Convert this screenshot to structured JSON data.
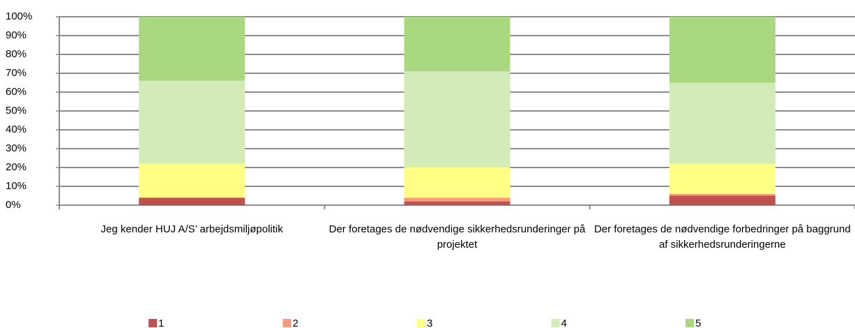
{
  "chart_data": {
    "type": "stacked_bar",
    "categories": [
      "Jeg kender HUJ A/S’ arbejdsmiljøpolitik",
      "Der foretages de nødvendige sikkerhedsrunderinger på projektet",
      "Der foretages de nødvendige forbedringer på baggrund af sikkerhedsrunderingerne"
    ],
    "series": [
      {
        "name": "1",
        "color": "#c0504d",
        "values": [
          4,
          2,
          5
        ]
      },
      {
        "name": "2",
        "color": "#f79b7f",
        "values": [
          0,
          2,
          1
        ]
      },
      {
        "name": "3",
        "color": "#ffff85",
        "values": [
          18,
          16,
          16
        ]
      },
      {
        "name": "4",
        "color": "#d3ebb7",
        "values": [
          44,
          51,
          43
        ]
      },
      {
        "name": "5",
        "color": "#a9d881",
        "values": [
          34,
          29,
          35
        ]
      }
    ],
    "ylim": [
      0,
      100
    ],
    "yticks": [
      {
        "value": 0,
        "label": "0%"
      },
      {
        "value": 10,
        "label": "10%"
      },
      {
        "value": 20,
        "label": "20%"
      },
      {
        "value": 30,
        "label": "30%"
      },
      {
        "value": 40,
        "label": "40%"
      },
      {
        "value": 50,
        "label": "50%"
      },
      {
        "value": 60,
        "label": "60%"
      },
      {
        "value": 70,
        "label": "70%"
      },
      {
        "value": 80,
        "label": "80%"
      },
      {
        "value": 90,
        "label": "90%"
      },
      {
        "value": 100,
        "label": "100%"
      }
    ],
    "grid": true,
    "legend": "bottom"
  }
}
